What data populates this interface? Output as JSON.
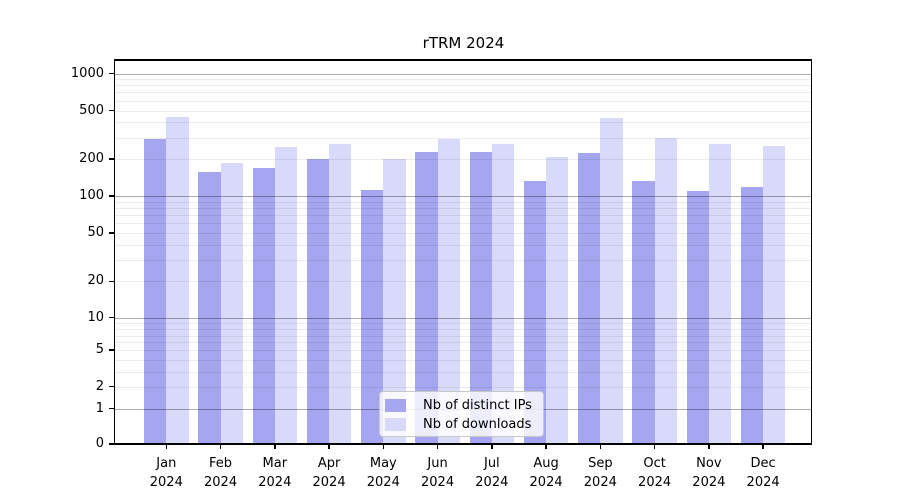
{
  "chart_data": {
    "type": "bar",
    "title": "rTRM 2024",
    "scale": "symlog-y",
    "grid": true,
    "legend_position": "inside-bottom-center",
    "categories": [
      "Jan",
      "Feb",
      "Mar",
      "Apr",
      "May",
      "Jun",
      "Jul",
      "Aug",
      "Sep",
      "Oct",
      "Nov",
      "Dec"
    ],
    "category_year": "2024",
    "series": [
      {
        "name": "Nb of distinct IPs",
        "color": "#a5a5f0",
        "values": [
          290,
          158,
          168,
          199,
          112,
          229,
          230,
          132,
          226,
          132,
          110,
          119
        ]
      },
      {
        "name": "Nb of downloads",
        "color": "#d9d9fa",
        "values": [
          445,
          186,
          250,
          264,
          200,
          293,
          264,
          210,
          436,
          299,
          268,
          256
        ]
      }
    ],
    "y_ticks": [
      1000,
      500,
      200,
      100,
      50,
      20,
      10,
      5,
      2,
      1,
      0
    ],
    "ylim": [
      0,
      1000
    ]
  }
}
